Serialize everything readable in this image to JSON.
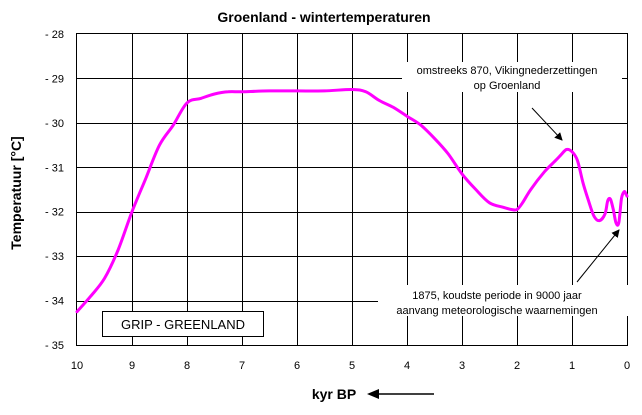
{
  "chart_data": {
    "type": "line",
    "title": "Groenland - wintertemperaturen",
    "xlabel": "kyr BP",
    "ylabel": "Temperatuur [°C]",
    "xlim": [
      10,
      0
    ],
    "ylim": [
      -35,
      -28
    ],
    "x_reversed": true,
    "grid": true,
    "x_ticks": [
      10,
      9,
      8,
      7,
      6,
      5,
      4,
      3,
      2,
      1,
      0
    ],
    "x_tick_labels": [
      "10",
      "9",
      "8",
      "7",
      "6",
      "5",
      "4",
      "3",
      "2",
      "1",
      "0"
    ],
    "y_ticks": [
      -28,
      -29,
      -30,
      -31,
      -32,
      -33,
      -34,
      -35
    ],
    "y_tick_labels": [
      "- 28",
      "- 29",
      "- 30",
      "- 31",
      "- 32",
      "- 33",
      "- 34",
      "- 35"
    ],
    "series": [
      {
        "color": "#ff00ff",
        "x": [
          10.0,
          9.75,
          9.5,
          9.25,
          9.0,
          8.75,
          8.5,
          8.25,
          8.0,
          7.75,
          7.5,
          7.25,
          7.0,
          6.5,
          6.0,
          5.5,
          5.0,
          4.75,
          4.5,
          4.25,
          4.0,
          3.75,
          3.5,
          3.25,
          3.0,
          2.75,
          2.5,
          2.25,
          2.1,
          2.0,
          1.9,
          1.75,
          1.5,
          1.3,
          1.2,
          1.1,
          1.0,
          0.9,
          0.8,
          0.7,
          0.6,
          0.5,
          0.4,
          0.35,
          0.3,
          0.25,
          0.2,
          0.15,
          0.1,
          0.05,
          0.02,
          0.0
        ],
        "y": [
          -34.25,
          -33.9,
          -33.5,
          -32.85,
          -32.0,
          -31.25,
          -30.5,
          -30.05,
          -29.55,
          -29.45,
          -29.35,
          -29.3,
          -29.3,
          -29.28,
          -29.28,
          -29.28,
          -29.25,
          -29.3,
          -29.5,
          -29.65,
          -29.85,
          -30.05,
          -30.35,
          -30.7,
          -31.15,
          -31.5,
          -31.8,
          -31.9,
          -31.95,
          -31.95,
          -31.8,
          -31.5,
          -31.1,
          -30.85,
          -30.72,
          -30.6,
          -30.65,
          -30.85,
          -31.35,
          -31.75,
          -32.1,
          -32.2,
          -32.05,
          -31.75,
          -31.72,
          -31.95,
          -32.25,
          -32.25,
          -31.7,
          -31.55,
          -31.6,
          -31.65
        ]
      }
    ],
    "annotations": [
      {
        "lines": [
          "omstreeks 870, Vikingnederzettingen",
          "op Groenland"
        ],
        "arrow_to": [
          1.15,
          -30.55
        ]
      },
      {
        "lines": [
          "1875, koudste periode in 9000 jaar",
          "aanvang meteorologische waarnemingen"
        ],
        "arrow_to": [
          0.1,
          -32.35
        ]
      }
    ],
    "legend_box_text": "GRIP - GREENLAND",
    "legend_box_placement": "bottom-left"
  },
  "x_axis_arrow": "←"
}
